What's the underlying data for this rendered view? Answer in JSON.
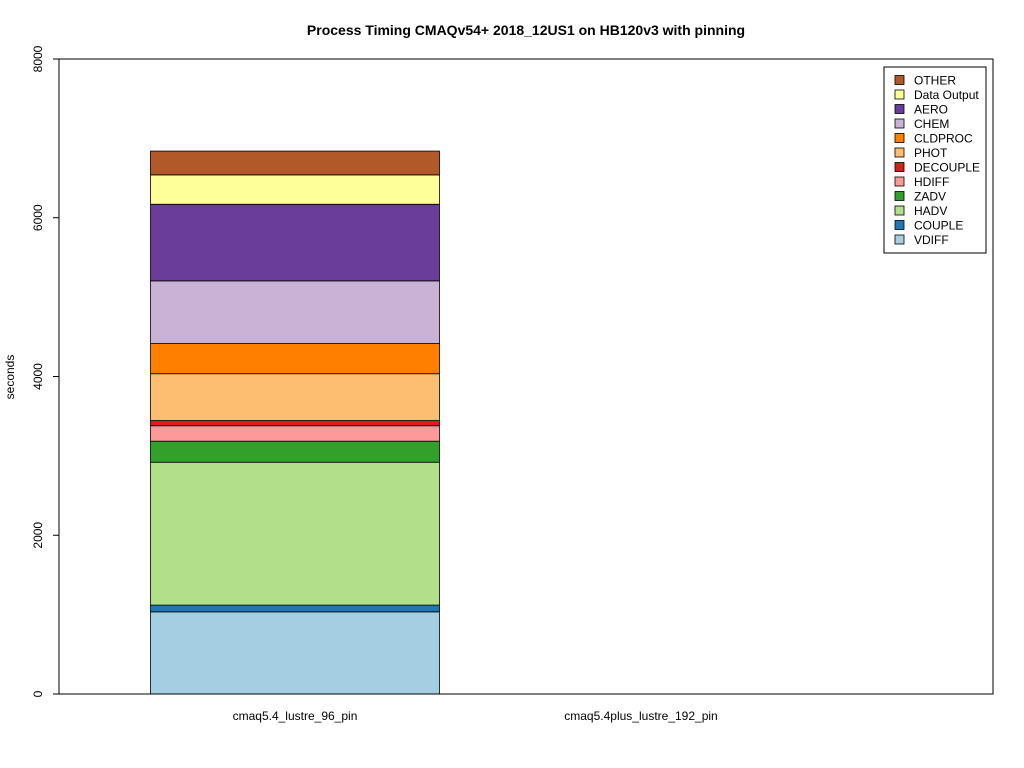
{
  "chart_data": {
    "type": "bar",
    "stacked": true,
    "title": "Process Timing CMAQv54+ 2018_12US1 on HB120v3 with pinning",
    "xlabel": "",
    "ylabel": "seconds",
    "ylim": [
      0,
      8000
    ],
    "yticks": [
      0,
      2000,
      4000,
      6000,
      8000
    ],
    "grid": false,
    "legend_position": "top-right",
    "categories": [
      "cmaq5.4_lustre_96_pin",
      "cmaq5.4plus_lustre_192_pin"
    ],
    "series": [
      {
        "name": "VDIFF",
        "color": "#A6CEE3",
        "values": [
          1035,
          0
        ]
      },
      {
        "name": "COUPLE",
        "color": "#1F78B4",
        "values": [
          85,
          0
        ]
      },
      {
        "name": "HADV",
        "color": "#B2DF8A",
        "values": [
          1800,
          0
        ]
      },
      {
        "name": "ZADV",
        "color": "#33A02C",
        "values": [
          265,
          0
        ]
      },
      {
        "name": "HDIFF",
        "color": "#FB9A99",
        "values": [
          195,
          0
        ]
      },
      {
        "name": "DECOUPLE",
        "color": "#E31A1C",
        "values": [
          65,
          0
        ]
      },
      {
        "name": "PHOT",
        "color": "#FDBF6F",
        "values": [
          590,
          0
        ]
      },
      {
        "name": "CLDPROC",
        "color": "#FF7F00",
        "values": [
          380,
          0
        ]
      },
      {
        "name": "CHEM",
        "color": "#CAB2D6",
        "values": [
          790,
          0
        ]
      },
      {
        "name": "AERO",
        "color": "#6A3D9A",
        "values": [
          965,
          0
        ]
      },
      {
        "name": "Data Output",
        "color": "#FFFF99",
        "values": [
          370,
          0
        ]
      },
      {
        "name": "OTHER",
        "color": "#B15928",
        "values": [
          300,
          0
        ]
      }
    ]
  }
}
